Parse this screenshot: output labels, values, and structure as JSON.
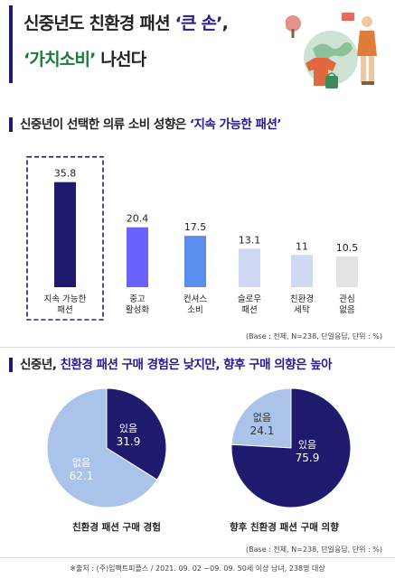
{
  "header": {
    "line1_a": "신중년도 친환경 패션 ",
    "line1_b": "‘큰 손’",
    "line1_c": ",",
    "line2_a": "‘가치소비’",
    "line2_b": " 나선다"
  },
  "section1": {
    "title_a": "신중년이 선택한 의류 소비 성향은 ",
    "title_b": "‘지속 가능한 패션’",
    "base_note": "(Base : 전체, N=238, 단일응답, 단위 : %)"
  },
  "section2": {
    "title_a": "신중년, ",
    "title_b": "친환경 패션 구매 경험은 낮지만, 향후 구매 의향은 높아",
    "base_note": "(Base : 전체, N=238, 단일응답, 단위 : %)"
  },
  "source": "※출처 : (주)임팩트피플스 / 2021. 09. 02 ~09. 09. 50세 이상 남녀, 238명 대상",
  "colors": {
    "navy": "#1e1a6e",
    "violet": "#6c63ff",
    "blue": "#5b8def",
    "light_blue": "#cfd9f3",
    "light_grey": "#e3e3e3",
    "pie_light": "#a9c3ea",
    "pie_dark": "#1e1a6e"
  },
  "chart_data": [
    {
      "type": "bar",
      "categories": [
        [
          "지속 가능한",
          "패션"
        ],
        [
          "중고",
          "활성화"
        ],
        [
          "컨셔스",
          "소비"
        ],
        [
          "슬로우",
          "패션"
        ],
        [
          "친환경",
          "세탁"
        ],
        [
          "관심",
          "없음"
        ]
      ],
      "values": [
        35.8,
        20.4,
        17.5,
        13.1,
        11,
        10.5
      ],
      "value_labels": [
        "35.8",
        "20.4",
        "17.5",
        "13.1",
        "11",
        "10.5"
      ],
      "highlight_index": 0,
      "ylim": [
        0,
        40
      ],
      "grid": false
    },
    {
      "type": "pie",
      "title": "친환경 패션 구매 경험",
      "slices": [
        {
          "label": "있음",
          "value": 31.9,
          "value_label": "31.9"
        },
        {
          "label": "없음",
          "value": 62.1,
          "value_label": "62.1"
        }
      ]
    },
    {
      "type": "pie",
      "title": "향후 친환경 패션 구매 의향",
      "slices": [
        {
          "label": "있음",
          "value": 75.9,
          "value_label": "75.9"
        },
        {
          "label": "없음",
          "value": 24.1,
          "value_label": "24.1"
        }
      ]
    }
  ]
}
